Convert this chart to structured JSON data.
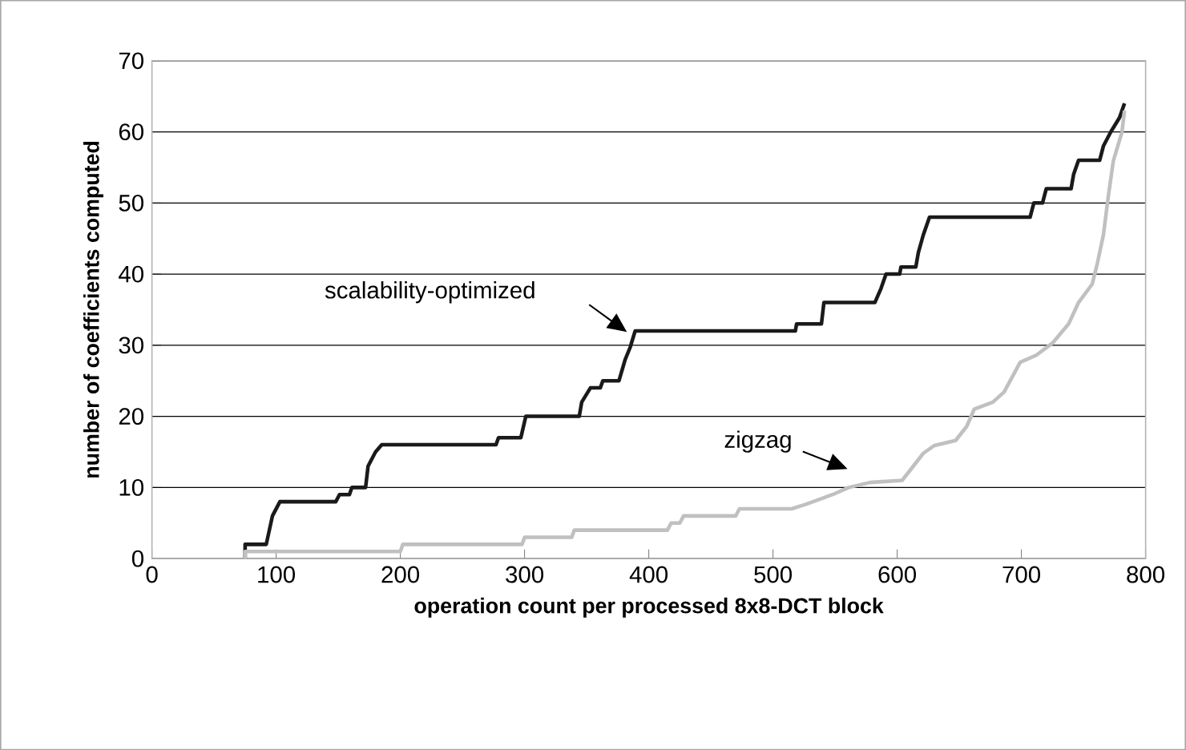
{
  "chart_data": {
    "type": "line",
    "xlabel": "operation count per processed 8x8-DCT block",
    "ylabel": "number of coefficients computed",
    "xlim": [
      0,
      800
    ],
    "xticks": [
      0,
      100,
      200,
      300,
      400,
      500,
      600,
      700,
      800
    ],
    "ylim": [
      0,
      70
    ],
    "yticks": [
      0,
      10,
      20,
      30,
      40,
      50,
      60,
      70
    ],
    "grid": "y",
    "marker": "none",
    "line_style": "solid",
    "series": [
      {
        "color": "#1a1a1a",
        "x": [
          75,
          75,
          92,
          97,
          103,
          148,
          151,
          159,
          161,
          172,
          174,
          180,
          185,
          277,
          279,
          297,
          301,
          344,
          346,
          353,
          361,
          363,
          376,
          381,
          385,
          389,
          391,
          518,
          519,
          539,
          541,
          582,
          587,
          591,
          602,
          603,
          615,
          617,
          621,
          626,
          707,
          710,
          717,
          720,
          740,
          742,
          746,
          763,
          766,
          772,
          779,
          783
        ],
        "values": [
          0,
          2,
          2,
          6,
          8,
          8,
          9,
          9,
          10,
          10,
          13,
          15,
          16,
          16,
          17,
          17,
          20,
          20,
          22,
          24,
          24,
          25,
          25,
          28,
          29.7,
          32,
          32,
          32,
          33,
          33,
          36,
          36,
          38,
          40,
          40,
          41,
          41,
          43,
          45.5,
          48,
          48,
          50,
          50,
          52,
          52,
          54,
          56,
          56,
          58,
          60,
          62,
          64
        ]
      },
      {
        "color": "#c0c0c0",
        "x": [
          75,
          75,
          200,
          202,
          298,
          300,
          338,
          340,
          415,
          418,
          425,
          428,
          470,
          473,
          515,
          526,
          548,
          561,
          578,
          604,
          613,
          621,
          630,
          647,
          656,
          662,
          677,
          686,
          699,
          712,
          725,
          738,
          746,
          757,
          761,
          766,
          770,
          774,
          781,
          783
        ],
        "values": [
          0,
          1,
          1,
          2,
          2,
          3,
          3,
          4,
          4,
          5,
          5,
          6,
          6,
          7,
          7,
          7.6,
          9,
          10,
          10.7,
          11,
          13,
          14.8,
          15.9,
          16.6,
          18.6,
          21,
          22,
          23.4,
          27.6,
          28.6,
          30.3,
          33,
          36,
          38.6,
          41.4,
          45.5,
          51,
          55.9,
          60,
          63
        ]
      }
    ],
    "annotations": [
      "scalability-optimized",
      "zigzag"
    ]
  }
}
